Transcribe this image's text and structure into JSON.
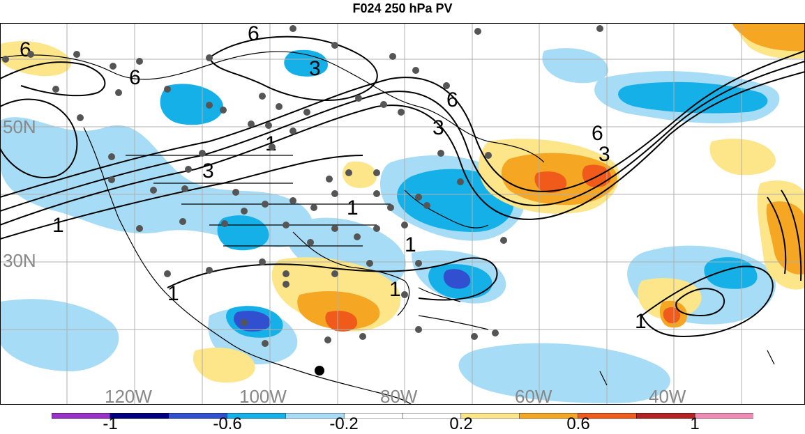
{
  "title": "F024 250 hPa PV",
  "axes": {
    "lat_labels": [
      "50N",
      "30N"
    ],
    "lon_labels": [
      "120W",
      "100W",
      "80W",
      "60W",
      "40W"
    ]
  },
  "contour_labels": [
    "6",
    "6",
    "6",
    "3",
    "3",
    "6",
    "3",
    "1",
    "1",
    "1",
    "1",
    "1",
    "6",
    "3",
    "1",
    "1"
  ],
  "colorbar": {
    "labels": [
      "-1",
      "-0.6",
      "-0.2",
      "0.2",
      "0.6",
      "1"
    ],
    "colors": [
      "#9b30c8",
      "#000080",
      "#3050d0",
      "#16b0e8",
      "#a6dcf5",
      "#ffffff",
      "#ffffff",
      "#fde58a",
      "#f5a623",
      "#f05a1a",
      "#b22222",
      "#f08cb4"
    ]
  },
  "map_colors": {
    "ocean": "#ffffff",
    "neg_light": "#a6dcf5",
    "neg_mid": "#16b0e8",
    "neg_strong": "#3050d0",
    "pos_light": "#fde58a",
    "pos_mid": "#f5a623",
    "pos_strong": "#f05a1a",
    "grid": "#b0b0b0",
    "coast": "#000000",
    "station": "#555555"
  }
}
